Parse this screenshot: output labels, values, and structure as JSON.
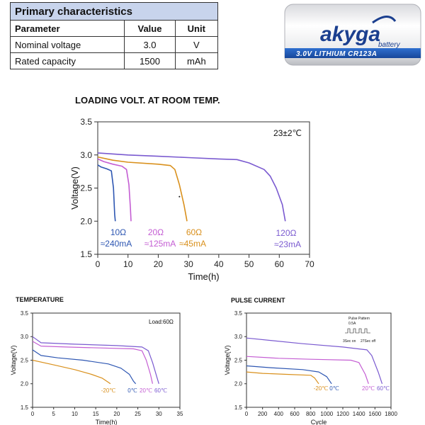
{
  "spec": {
    "title": "Primary characteristics",
    "headers": [
      "Parameter",
      "Value",
      "Unit"
    ],
    "rows": [
      [
        "Nominal voltage",
        "3.0",
        "V"
      ],
      [
        "Rated capacity",
        "1500",
        "mAh"
      ]
    ]
  },
  "product": {
    "brand": "akyga",
    "brand_sub": "battery",
    "label": "3.0V  LITHIUM  CR123A",
    "colors": {
      "body": "#f4f4f6",
      "label_band": "#1f5fbf",
      "brand": "#1b3f8f"
    }
  },
  "chart_data": [
    {
      "type": "line",
      "title": "LOADING VOLT. AT ROOM TEMP.",
      "xlabel": "Time(h)",
      "ylabel": "Voltage(V)",
      "xlim": [
        0,
        70
      ],
      "ylim": [
        1.5,
        3.5
      ],
      "xticks": [
        0,
        10,
        20,
        30,
        40,
        50,
        60,
        70
      ],
      "yticks": [
        1.5,
        2.0,
        2.5,
        3.0,
        3.5
      ],
      "grid": false,
      "annotations": [
        "23±2℃"
      ],
      "series": [
        {
          "name": "10Ω",
          "name2": "≈240mA",
          "color": "#2d56b2",
          "points": [
            [
              0,
              2.85
            ],
            [
              1,
              2.82
            ],
            [
              3,
              2.79
            ],
            [
              4.5,
              2.76
            ],
            [
              5.2,
              2.5
            ],
            [
              5.6,
              2.1
            ],
            [
              5.8,
              2.0
            ]
          ]
        },
        {
          "name": "20Ω",
          "name2": "≈125mA",
          "color": "#c45dd3",
          "points": [
            [
              0,
              2.94
            ],
            [
              2,
              2.9
            ],
            [
              5,
              2.86
            ],
            [
              8,
              2.83
            ],
            [
              9.5,
              2.78
            ],
            [
              10.3,
              2.55
            ],
            [
              10.8,
              2.2
            ],
            [
              11,
              2.0
            ]
          ]
        },
        {
          "name": "60Ω",
          "name2": "≈45mA",
          "color": "#d9901c",
          "points": [
            [
              0,
              2.97
            ],
            [
              5,
              2.92
            ],
            [
              10,
              2.89
            ],
            [
              20,
              2.86
            ],
            [
              24,
              2.84
            ],
            [
              25.5,
              2.78
            ],
            [
              27,
              2.55
            ],
            [
              28.5,
              2.25
            ],
            [
              29.5,
              2.0
            ]
          ]
        },
        {
          "name": "120Ω",
          "name2": "≈23mA",
          "color": "#7a5ad0",
          "points": [
            [
              0,
              3.03
            ],
            [
              10,
              3.0
            ],
            [
              20,
              2.98
            ],
            [
              30,
              2.96
            ],
            [
              40,
              2.94
            ],
            [
              46,
              2.93
            ],
            [
              50,
              2.88
            ],
            [
              55,
              2.78
            ],
            [
              57,
              2.68
            ],
            [
              59,
              2.5
            ],
            [
              61,
              2.25
            ],
            [
              62,
              2.0
            ]
          ]
        }
      ]
    },
    {
      "type": "line",
      "title": "TEMPERATURE",
      "xlabel": "Time(h)",
      "ylabel": "Voltage(V)",
      "xlim": [
        0,
        35
      ],
      "ylim": [
        1.5,
        3.5
      ],
      "xticks": [
        0,
        5,
        10,
        15,
        20,
        25,
        30,
        35
      ],
      "yticks": [
        1.5,
        2.0,
        2.5,
        3.0,
        3.5
      ],
      "grid": false,
      "annotations": [
        "Load:60Ω"
      ],
      "series": [
        {
          "name": "-20℃",
          "color": "#d9901c",
          "points": [
            [
              0,
              2.5
            ],
            [
              5,
              2.4
            ],
            [
              10,
              2.3
            ],
            [
              14,
              2.2
            ],
            [
              16.5,
              2.12
            ],
            [
              18,
              2.03
            ],
            [
              18.5,
              2.0
            ]
          ]
        },
        {
          "name": "0℃",
          "color": "#2d56b2",
          "points": [
            [
              0,
              2.72
            ],
            [
              2,
              2.6
            ],
            [
              6,
              2.55
            ],
            [
              12,
              2.5
            ],
            [
              18,
              2.42
            ],
            [
              21,
              2.33
            ],
            [
              23,
              2.2
            ],
            [
              24,
              2.05
            ],
            [
              24.5,
              2.0
            ]
          ]
        },
        {
          "name": "20℃",
          "color": "#c45dd3",
          "points": [
            [
              0,
              2.9
            ],
            [
              2,
              2.8
            ],
            [
              8,
              2.78
            ],
            [
              16,
              2.76
            ],
            [
              24,
              2.74
            ],
            [
              26,
              2.7
            ],
            [
              27,
              2.5
            ],
            [
              28,
              2.2
            ],
            [
              28.5,
              2.0
            ]
          ]
        },
        {
          "name": "60℃",
          "color": "#7a5ad0",
          "points": [
            [
              0,
              3.0
            ],
            [
              2,
              2.87
            ],
            [
              10,
              2.84
            ],
            [
              20,
              2.81
            ],
            [
              26,
              2.78
            ],
            [
              27.5,
              2.7
            ],
            [
              28.5,
              2.45
            ],
            [
              29.5,
              2.15
            ],
            [
              30,
              2.0
            ]
          ]
        }
      ]
    },
    {
      "type": "line",
      "title": "PULSE CURRENT",
      "xlabel": "Cycle",
      "ylabel": "Voltage(V)",
      "xlim": [
        0,
        1800
      ],
      "ylim": [
        1.5,
        3.5
      ],
      "xticks": [
        0,
        200,
        400,
        600,
        800,
        1000,
        1200,
        1400,
        1600,
        1800
      ],
      "yticks": [
        1.5,
        2.0,
        2.5,
        3.0,
        3.5
      ],
      "grid": false,
      "annotations": [
        "Pulse Pattern",
        "0.5A",
        "3Sec on",
        "27Sec off"
      ],
      "series": [
        {
          "name": "-20℃",
          "color": "#d9901c",
          "points": [
            [
              0,
              2.25
            ],
            [
              200,
              2.22
            ],
            [
              500,
              2.2
            ],
            [
              800,
              2.18
            ],
            [
              850,
              2.12
            ],
            [
              900,
              2.0
            ]
          ]
        },
        {
          "name": "0℃",
          "color": "#2d56b2",
          "points": [
            [
              0,
              2.38
            ],
            [
              300,
              2.34
            ],
            [
              700,
              2.3
            ],
            [
              900,
              2.25
            ],
            [
              1000,
              2.15
            ],
            [
              1060,
              2.0
            ]
          ]
        },
        {
          "name": "20℃",
          "color": "#c45dd3",
          "points": [
            [
              0,
              2.58
            ],
            [
              400,
              2.54
            ],
            [
              800,
              2.52
            ],
            [
              1300,
              2.5
            ],
            [
              1400,
              2.45
            ],
            [
              1480,
              2.2
            ],
            [
              1520,
              2.0
            ]
          ]
        },
        {
          "name": "60℃",
          "color": "#7a5ad0",
          "points": [
            [
              0,
              2.97
            ],
            [
              300,
              2.92
            ],
            [
              700,
              2.85
            ],
            [
              1200,
              2.78
            ],
            [
              1500,
              2.72
            ],
            [
              1560,
              2.6
            ],
            [
              1640,
              2.25
            ],
            [
              1690,
              2.0
            ]
          ]
        }
      ]
    }
  ]
}
